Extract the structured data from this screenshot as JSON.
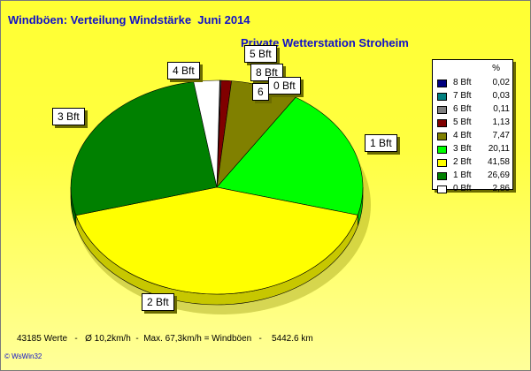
{
  "chart_data": {
    "type": "pie",
    "title": "Windböen: Verteilung Windstärke  Juni 2014",
    "subtitle": "Private Wetterstation Stroheim",
    "legend_header": "%",
    "legend_position": "right",
    "slices": [
      {
        "label": "8 Bft",
        "value": 0.02,
        "display": "0,02",
        "color": "#000080"
      },
      {
        "label": "7 Bft",
        "value": 0.03,
        "display": "0,03",
        "color": "#008080"
      },
      {
        "label": "6 Bft",
        "value": 0.11,
        "display": "0,11",
        "color": "#808080"
      },
      {
        "label": "5 Bft",
        "value": 1.13,
        "display": "1,13",
        "color": "#800000"
      },
      {
        "label": "4 Bft",
        "value": 7.47,
        "display": "7,47",
        "color": "#808000"
      },
      {
        "label": "3 Bft",
        "value": 20.11,
        "display": "20,11",
        "color": "#00ff00"
      },
      {
        "label": "2 Bft",
        "value": 41.58,
        "display": "41,58",
        "color": "#ffff00"
      },
      {
        "label": "1 Bft",
        "value": 26.69,
        "display": "26,69",
        "color": "#008000"
      },
      {
        "label": "0 Bft",
        "value": 2.86,
        "display": "2,86",
        "color": "#ffffff"
      }
    ],
    "slice_callouts": [
      "5 Bft",
      "4 Bft",
      "8 Bft",
      "6",
      "0 Bft",
      "3 Bft",
      "1 Bft",
      "2 Bft"
    ]
  },
  "footer": "43185 Werte   -   Ø 10,2km/h  -  Max. 67,3km/h = Windböen   -    5442.6 km",
  "credit": "© WsWin32"
}
